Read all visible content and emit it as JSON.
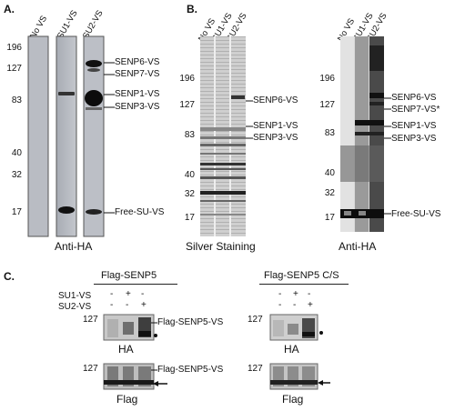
{
  "panelA": {
    "letter": "A.",
    "lanes": [
      "No VS",
      "SU1-VS",
      "SU2-VS"
    ],
    "markers": [
      "196",
      "127",
      "83",
      "40",
      "32",
      "17"
    ],
    "bands": [
      "SENP6-VS",
      "SENP7-VS",
      "SENP1-VS",
      "SENP3-VS",
      "Free-SU-VS"
    ],
    "caption": "Anti-HA"
  },
  "panelB": {
    "letter": "B.",
    "silver": {
      "lanes": [
        "No VS",
        "SU1-VS",
        "SU2-VS"
      ],
      "markers": [
        "196",
        "127",
        "83",
        "40",
        "32",
        "17"
      ],
      "bands": [
        "SENP6-VS",
        "SENP1-VS",
        "SENP3-VS"
      ],
      "caption": "Silver Staining"
    },
    "antiha": {
      "lanes": [
        "No VS",
        "SU1-VS",
        "SU2-VS"
      ],
      "markers": [
        "196",
        "127",
        "83",
        "40",
        "32",
        "17"
      ],
      "bands": [
        "SENP6-VS",
        "SENP7-VS*",
        "SENP1-VS",
        "SENP3-VS",
        "Free-SU-VS"
      ],
      "caption": "Anti-HA"
    }
  },
  "panelC": {
    "letter": "C.",
    "rowlabels": [
      "SU1-VS",
      "SU2-VS"
    ],
    "left": {
      "title": "Flag-SENP5",
      "su1": [
        "-",
        "+",
        "-"
      ],
      "su2": [
        "-",
        "-",
        "+"
      ],
      "marker": "127",
      "band": "Flag-SENP5-VS",
      "caption_top": "HA",
      "caption_bottom": "Flag"
    },
    "right": {
      "title": "Flag-SENP5 C/S",
      "su1": [
        "-",
        "+",
        "-"
      ],
      "su2": [
        "-",
        "-",
        "+"
      ],
      "marker": "127",
      "caption_top": "HA",
      "caption_bottom": "Flag"
    }
  }
}
